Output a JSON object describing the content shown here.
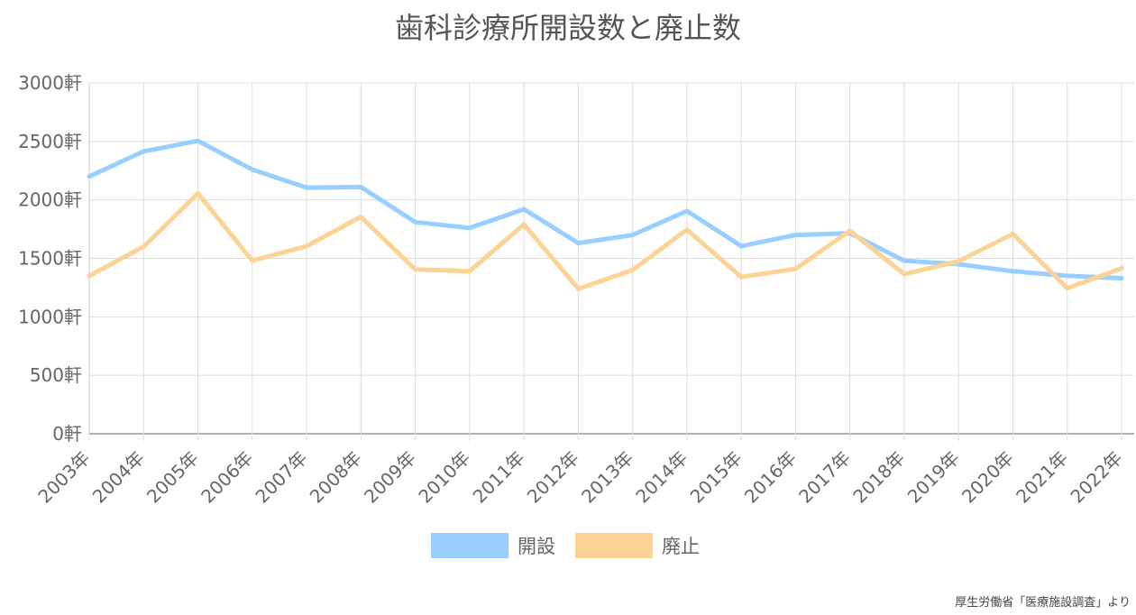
{
  "title": "歯科診療所開設数と廃止数",
  "source_note": "厚生労働省「医療施設調査」より",
  "chart_data": {
    "type": "line",
    "title": "歯科診療所開設数と廃止数",
    "xlabel": "",
    "ylabel": "",
    "categories": [
      "2003年",
      "2004年",
      "2005年",
      "2006年",
      "2007年",
      "2008年",
      "2009年",
      "2010年",
      "2011年",
      "2012年",
      "2013年",
      "2014年",
      "2015年",
      "2016年",
      "2017年",
      "2018年",
      "2019年",
      "2020年",
      "2021年",
      "2022年"
    ],
    "y_ticks": [
      "0軒",
      "500軒",
      "1000軒",
      "1500軒",
      "2000軒",
      "2500軒",
      "3000軒"
    ],
    "ylim": [
      0,
      3000
    ],
    "grid": true,
    "legend_position": "bottom",
    "series": [
      {
        "name": "開設",
        "color": "#99cfff",
        "values": [
          2200,
          2415,
          2505,
          2260,
          2105,
          2110,
          1810,
          1760,
          1920,
          1630,
          1700,
          1905,
          1605,
          1700,
          1715,
          1480,
          1450,
          1390,
          1350,
          1330
        ]
      },
      {
        "name": "廃止",
        "color": "#fcd394",
        "values": [
          1350,
          1600,
          2055,
          1480,
          1605,
          1855,
          1405,
          1390,
          1790,
          1240,
          1400,
          1745,
          1340,
          1410,
          1735,
          1365,
          1475,
          1710,
          1245,
          1415
        ]
      }
    ]
  }
}
